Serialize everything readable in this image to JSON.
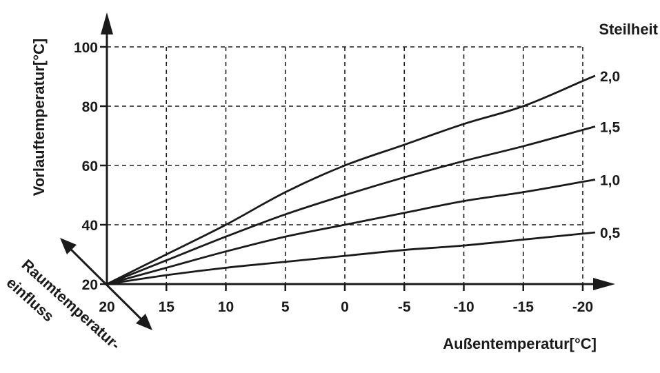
{
  "chart_data": {
    "type": "line",
    "xlabel": "Außentemperatur[°C]",
    "ylabel": "Vorlauftemperatur[°C]",
    "x_ticks": [
      "20",
      "15",
      "10",
      "5",
      "0",
      "-5",
      "-10",
      "-15",
      "-20"
    ],
    "y_ticks": [
      "20",
      "40",
      "60",
      "80",
      "100"
    ],
    "xlim": [
      20,
      -20
    ],
    "ylim": [
      20,
      100
    ],
    "grid": true,
    "legend_title": "Steilheit",
    "secondary_axis_label_lines": [
      "Raumtemperatur-",
      "einfluss"
    ],
    "x": [
      20,
      15,
      10,
      5,
      0,
      -5,
      -10,
      -15,
      -20
    ],
    "series": [
      {
        "name": "2,0",
        "values": [
          20,
          30,
          40,
          51,
          60,
          67,
          74,
          80,
          88.5
        ]
      },
      {
        "name": "1,5",
        "values": [
          20,
          28,
          36,
          43.5,
          50,
          56,
          61.5,
          66.5,
          72
        ]
      },
      {
        "name": "1,0",
        "values": [
          20,
          25.5,
          31,
          36,
          40,
          44,
          48,
          51,
          54.5
        ]
      },
      {
        "name": "0,5",
        "values": [
          20,
          23,
          25.5,
          27.5,
          29.5,
          31.5,
          33,
          35,
          37
        ]
      }
    ]
  }
}
